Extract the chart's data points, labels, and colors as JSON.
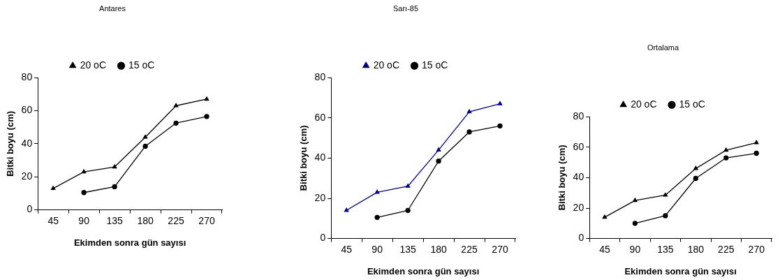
{
  "chart_data": [
    {
      "type": "line",
      "title": "Antares",
      "xlabel": "Ekimden sonra gün sayısı",
      "ylabel": "Bitki boyu (cm)",
      "categories": [
        "45",
        "90",
        "135",
        "180",
        "225",
        "270"
      ],
      "ylim": [
        0,
        80
      ],
      "yticks": [
        0,
        20,
        40,
        60,
        80
      ],
      "grid": false,
      "legend": "top",
      "line_style": "solid",
      "series": [
        {
          "name": "20 oC",
          "color": "#000000",
          "marker": "triangle",
          "values": [
            13,
            23,
            26,
            44,
            63,
            67
          ]
        },
        {
          "name": "15 oC",
          "color": "#000000",
          "marker": "circle",
          "values": [
            null,
            10.5,
            14,
            38.5,
            52.5,
            56.5
          ]
        }
      ]
    },
    {
      "type": "line",
      "title": "Sarı-85",
      "xlabel": "Ekimden sonra gün sayısı",
      "ylabel": "Bitki boyu (cm)",
      "categories": [
        "45",
        "90",
        "135",
        "180",
        "225",
        "270"
      ],
      "ylim": [
        0,
        80
      ],
      "yticks": [
        0,
        20,
        40,
        60,
        80
      ],
      "grid": false,
      "legend": "top",
      "line_style": "solid",
      "series": [
        {
          "name": "20 oC",
          "color": "#000080",
          "marker": "triangle",
          "values": [
            14,
            23,
            26,
            44,
            63,
            67
          ]
        },
        {
          "name": "15 oC",
          "color": "#000000",
          "marker": "circle",
          "values": [
            null,
            10.5,
            14,
            38.5,
            53,
            56
          ]
        }
      ]
    },
    {
      "type": "line",
      "title": "Ortalama",
      "xlabel": "Ekimden sonra gün sayısı",
      "ylabel": "Bitki boyu (cm)",
      "categories": [
        "45",
        "90",
        "135",
        "180",
        "225",
        "270"
      ],
      "ylim": [
        0,
        80
      ],
      "yticks": [
        0,
        20,
        40,
        60,
        80
      ],
      "grid": false,
      "legend": "top",
      "line_style": "solid",
      "series": [
        {
          "name": "20 oC",
          "color": "#000000",
          "marker": "triangle",
          "values": [
            14,
            25,
            28.5,
            46,
            58,
            63
          ]
        },
        {
          "name": "15 oC",
          "color": "#000000",
          "marker": "circle",
          "values": [
            null,
            10,
            15,
            39.5,
            53,
            56
          ]
        }
      ]
    }
  ]
}
